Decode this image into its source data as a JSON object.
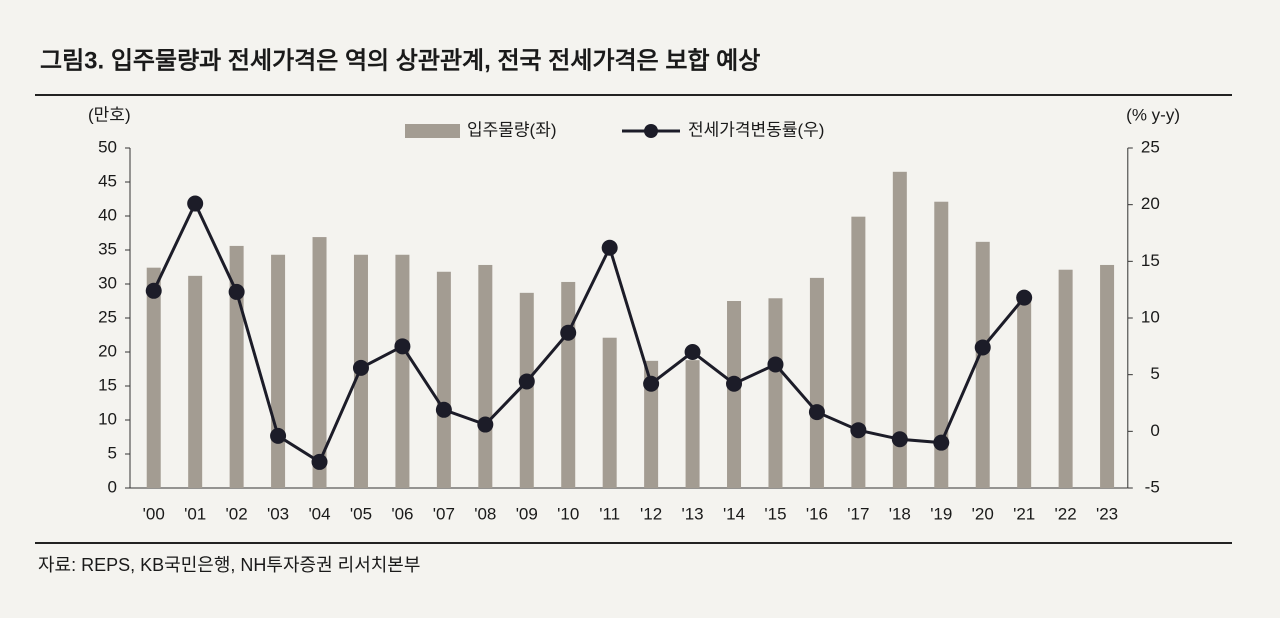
{
  "chart_data": {
    "type": "bar_line",
    "title": "그림3. 입주물량과 전세가격은 역의 상관관계, 전국 전세가격은 보합 예상",
    "y_label": "(만호)",
    "y2_label": "(% y-y)",
    "source": "자료: REPS, KB국민은행, NH투자증권 리서치본부",
    "categories": [
      "'00",
      "'01",
      "'02",
      "'03",
      "'04",
      "'05",
      "'06",
      "'07",
      "'08",
      "'09",
      "'10",
      "'11",
      "'12",
      "'13",
      "'14",
      "'15",
      "'16",
      "'17",
      "'18",
      "'19",
      "'20",
      "'21",
      "'22",
      "'23"
    ],
    "series": [
      {
        "name": "입주물량(좌)",
        "type": "bar",
        "color": "#a39c92",
        "axis": "y",
        "values": [
          32.4,
          31.2,
          35.6,
          34.3,
          36.9,
          34.3,
          34.3,
          31.8,
          32.8,
          28.7,
          30.3,
          22.1,
          18.7,
          18.8,
          27.5,
          27.9,
          30.9,
          39.9,
          46.5,
          42.1,
          36.2,
          27.5,
          32.1,
          32.8
        ]
      },
      {
        "name": "전세가격변동률(우)",
        "type": "line",
        "color": "#1c1c28",
        "axis": "y2",
        "values": [
          12.4,
          20.1,
          12.3,
          -0.4,
          -2.7,
          5.6,
          7.5,
          1.9,
          0.6,
          4.4,
          8.7,
          16.2,
          4.2,
          7.0,
          4.2,
          5.9,
          1.7,
          0.1,
          -0.7,
          -1.0,
          7.4,
          11.8,
          null,
          null
        ]
      }
    ],
    "ylim": [
      0,
      50
    ],
    "yticks": [
      0,
      5,
      10,
      15,
      20,
      25,
      30,
      35,
      40,
      45,
      50
    ],
    "y2lim": [
      -5,
      25
    ],
    "y2ticks": [
      -5,
      0,
      5,
      10,
      15,
      20,
      25
    ],
    "legend": "top"
  }
}
